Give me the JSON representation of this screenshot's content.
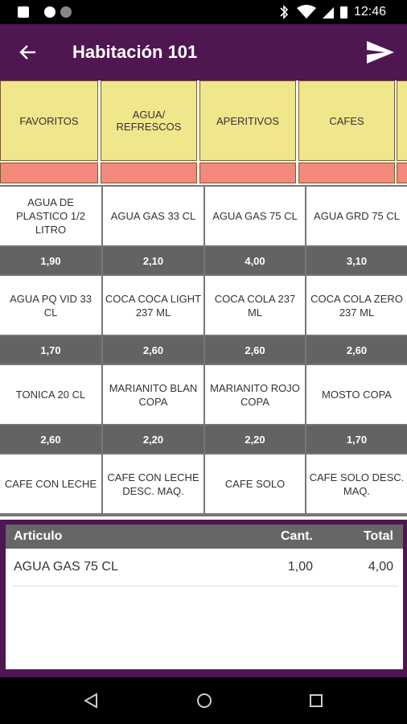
{
  "status": {
    "time": "12:46"
  },
  "header": {
    "title": "Habitación 101"
  },
  "categories": [
    "FAVORITOS",
    "AGUA/ REFRESCOS",
    "APERITIVOS",
    "CAFES"
  ],
  "products": [
    {
      "name": "AGUA DE PLASTICO 1/2 LITRO",
      "price": "1,90"
    },
    {
      "name": "AGUA GAS 33 CL",
      "price": "2,10"
    },
    {
      "name": "AGUA GAS 75 CL",
      "price": "4,00"
    },
    {
      "name": "AGUA GRD 75 CL",
      "price": "3,10"
    },
    {
      "name": "AGUA PQ VID 33 CL",
      "price": "1,70"
    },
    {
      "name": "COCA COCA LIGHT 237 ML",
      "price": "2,60"
    },
    {
      "name": "COCA COLA 237 ML",
      "price": "2,60"
    },
    {
      "name": "COCA COLA ZERO 237 ML",
      "price": "2,60"
    },
    {
      "name": "TONICA 20 CL",
      "price": "2,60"
    },
    {
      "name": "MARIANITO BLAN COPA",
      "price": "2,20"
    },
    {
      "name": "MARIANITO ROJO COPA",
      "price": "2,20"
    },
    {
      "name": "MOSTO COPA",
      "price": "1,70"
    },
    {
      "name": "CAFE CON LECHE"
    },
    {
      "name": "CAFE CON LECHE DESC. MAQ."
    },
    {
      "name": "CAFE SOLO"
    },
    {
      "name": "CAFE SOLO DESC. MAQ."
    }
  ],
  "order": {
    "columns": [
      "Articulo",
      "Cant.",
      "Total"
    ],
    "rows": [
      [
        "AGUA GAS 75 CL",
        "1,00",
        "4,00"
      ]
    ]
  }
}
